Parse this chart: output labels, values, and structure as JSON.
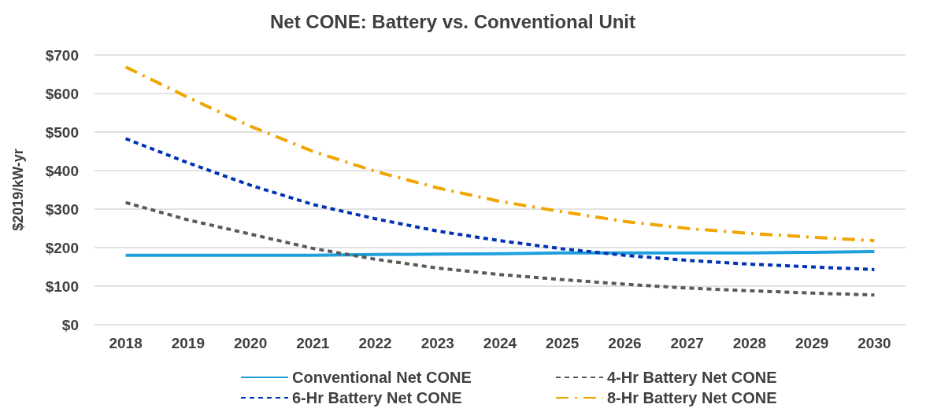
{
  "chart_data": {
    "type": "line",
    "title": "Net CONE: Battery vs. Conventional Unit",
    "ylabel": "$2019/kW-yr",
    "categories": [
      "2018",
      "2019",
      "2020",
      "2021",
      "2022",
      "2023",
      "2024",
      "2025",
      "2026",
      "2027",
      "2028",
      "2029",
      "2030"
    ],
    "series": [
      {
        "name": "Conventional Net CONE",
        "color": "#1fa0dc",
        "line_style": "solid",
        "values": [
          180,
          180,
          180,
          180,
          182,
          183,
          184,
          186,
          186,
          186,
          186,
          188,
          190
        ]
      },
      {
        "name": "4-Hr Battery Net CONE",
        "color": "#595959",
        "line_style": "dashed",
        "values": [
          317,
          272,
          235,
          198,
          170,
          147,
          130,
          117,
          105,
          95,
          88,
          82,
          77
        ]
      },
      {
        "name": "6-Hr Battery Net CONE",
        "color": "#0033b4",
        "line_style": "dashed",
        "values": [
          483,
          420,
          362,
          312,
          275,
          243,
          218,
          197,
          180,
          167,
          157,
          150,
          143
        ]
      },
      {
        "name": "8-Hr Battery Net CONE",
        "color": "#f0a500",
        "line_style": "dashdot",
        "values": [
          669,
          590,
          515,
          450,
          398,
          355,
          320,
          293,
          268,
          250,
          237,
          227,
          218
        ]
      }
    ],
    "ylim": [
      0,
      700
    ],
    "yticks": [
      {
        "value": 0,
        "label": "$0"
      },
      {
        "value": 100,
        "label": "$100"
      },
      {
        "value": 200,
        "label": "$200"
      },
      {
        "value": 300,
        "label": "$300"
      },
      {
        "value": 400,
        "label": "$400"
      },
      {
        "value": 500,
        "label": "$500"
      },
      {
        "value": 600,
        "label": "$600"
      },
      {
        "value": 700,
        "label": "$700"
      }
    ],
    "grid": "y",
    "legend": "bottom",
    "marker": "none"
  }
}
